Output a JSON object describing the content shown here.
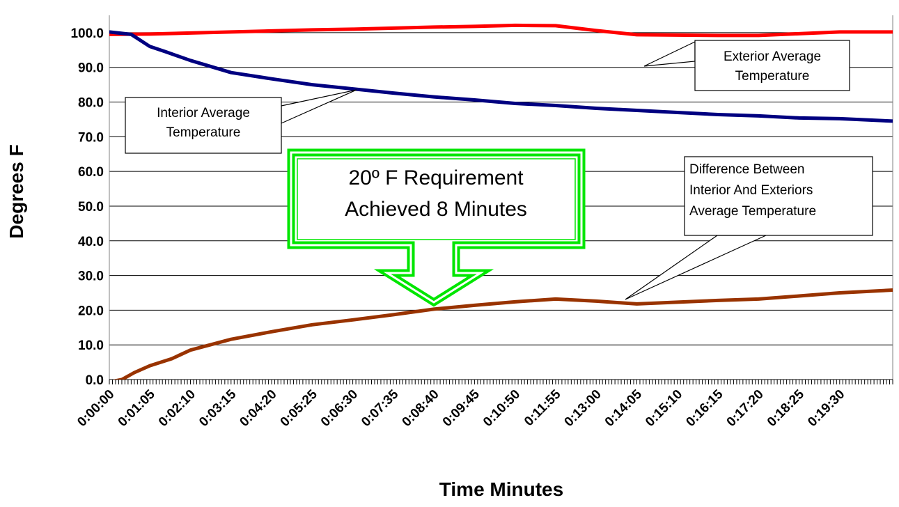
{
  "chart_data": {
    "type": "line",
    "title": "",
    "xlabel": "Time Minutes",
    "ylabel": "Degrees F",
    "ylim": [
      0,
      105
    ],
    "yticks": [
      "0.0",
      "10.0",
      "20.0",
      "30.0",
      "40.0",
      "50.0",
      "60.0",
      "70.0",
      "80.0",
      "90.0",
      "100.0"
    ],
    "xlim_seconds": [
      0,
      1255
    ],
    "xtick_labels": [
      "0:00:00",
      "0:01:05",
      "0:02:10",
      "0:03:15",
      "0:04:20",
      "0:05:25",
      "0:06:30",
      "0:07:35",
      "0:08:40",
      "0:09:45",
      "0:10:50",
      "0:11:55",
      "0:13:00",
      "0:14:05",
      "0:15:10",
      "0:16:15",
      "0:17:20",
      "0:18:25",
      "0:19:30"
    ],
    "grid": true,
    "colors": {
      "exterior": "#ff0000",
      "interior": "#000080",
      "difference": "#993300",
      "callout_green": "#00e600"
    },
    "series": [
      {
        "key": "exterior",
        "x": [
          "0:00:00",
          "0:01:05",
          "0:02:10",
          "0:03:15",
          "0:04:20",
          "0:05:25",
          "0:06:30",
          "0:07:35",
          "0:08:40",
          "0:09:45",
          "0:10:50",
          "0:11:55",
          "0:13:00",
          "0:14:05",
          "0:15:10",
          "0:16:15",
          "0:17:20",
          "0:18:25",
          "0:19:30",
          "0:20:55"
        ],
        "values": [
          99.5,
          99.6,
          99.9,
          100.2,
          100.5,
          100.8,
          101.0,
          101.3,
          101.6,
          101.8,
          102.1,
          102.0,
          100.6,
          99.4,
          99.3,
          99.2,
          99.2,
          99.7,
          100.2,
          100.2
        ]
      },
      {
        "key": "interior",
        "x": [
          "0:00:00",
          "0:00:35",
          "0:01:05",
          "0:01:30",
          "0:02:10",
          "0:03:15",
          "0:04:20",
          "0:05:25",
          "0:06:30",
          "0:07:35",
          "0:08:40",
          "0:09:45",
          "0:10:50",
          "0:11:55",
          "0:13:00",
          "0:14:05",
          "0:15:10",
          "0:16:15",
          "0:17:20",
          "0:18:25",
          "0:19:30",
          "0:20:55"
        ],
        "values": [
          100.2,
          99.5,
          96.0,
          94.5,
          92.0,
          88.5,
          86.7,
          85.0,
          83.8,
          82.6,
          81.5,
          80.6,
          79.6,
          79.0,
          78.2,
          77.6,
          77.0,
          76.4,
          76.0,
          75.4,
          75.2,
          74.5
        ]
      },
      {
        "key": "difference",
        "x": [
          "0:00:00",
          "0:00:20",
          "0:00:40",
          "0:01:05",
          "0:01:40",
          "0:02:10",
          "0:03:15",
          "0:04:20",
          "0:05:25",
          "0:06:30",
          "0:07:35",
          "0:08:40",
          "0:09:45",
          "0:10:50",
          "0:11:55",
          "0:13:00",
          "0:14:05",
          "0:15:10",
          "0:16:15",
          "0:17:20",
          "0:18:25",
          "0:19:30",
          "0:20:55"
        ],
        "values": [
          -0.7,
          0.0,
          2.0,
          4.0,
          6.0,
          8.5,
          11.6,
          13.8,
          15.8,
          17.2,
          18.7,
          20.3,
          21.4,
          22.4,
          23.2,
          22.6,
          21.8,
          22.3,
          22.8,
          23.2,
          24.1,
          25.0,
          25.8
        ]
      }
    ],
    "annotations": [
      {
        "key": "exterior_label",
        "lines": [
          "Exterior Average",
          "Temperature"
        ]
      },
      {
        "key": "interior_label",
        "lines": [
          "Interior Average",
          "Temperature"
        ]
      },
      {
        "key": "difference_label",
        "lines": [
          "Difference Between",
          "Interior And Exteriors",
          "Average Temperature"
        ]
      },
      {
        "key": "requirement_callout",
        "lines": [
          "20º F Requirement",
          "Achieved 8 Minutes"
        ]
      }
    ]
  }
}
